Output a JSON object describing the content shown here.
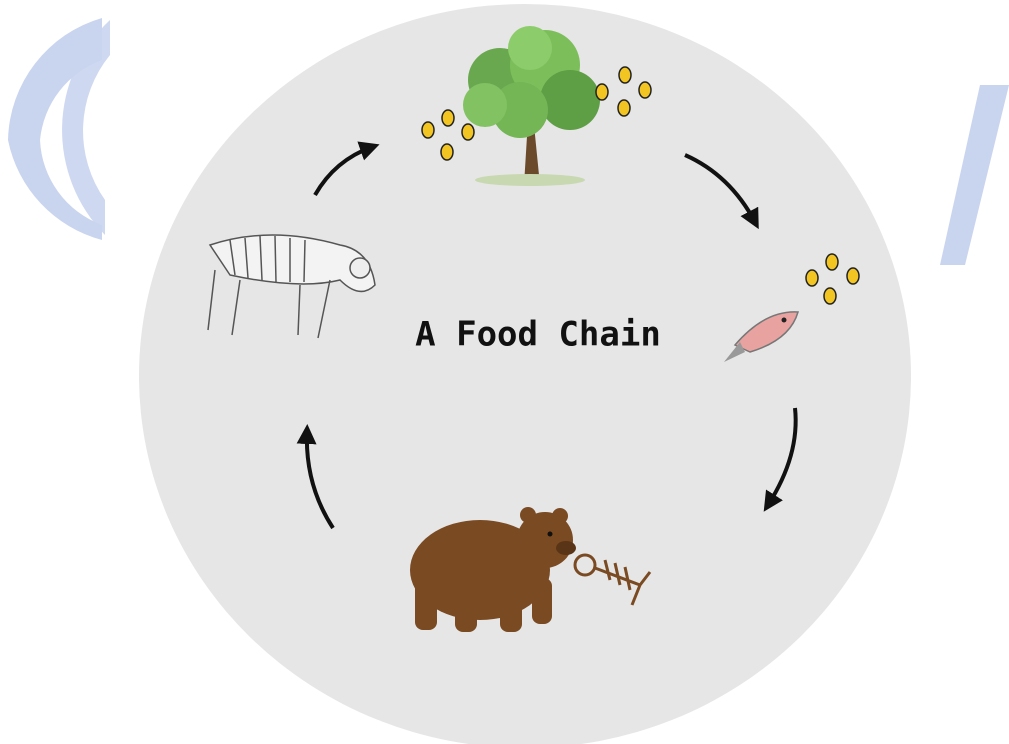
{
  "title": "A Food Chain"
}
